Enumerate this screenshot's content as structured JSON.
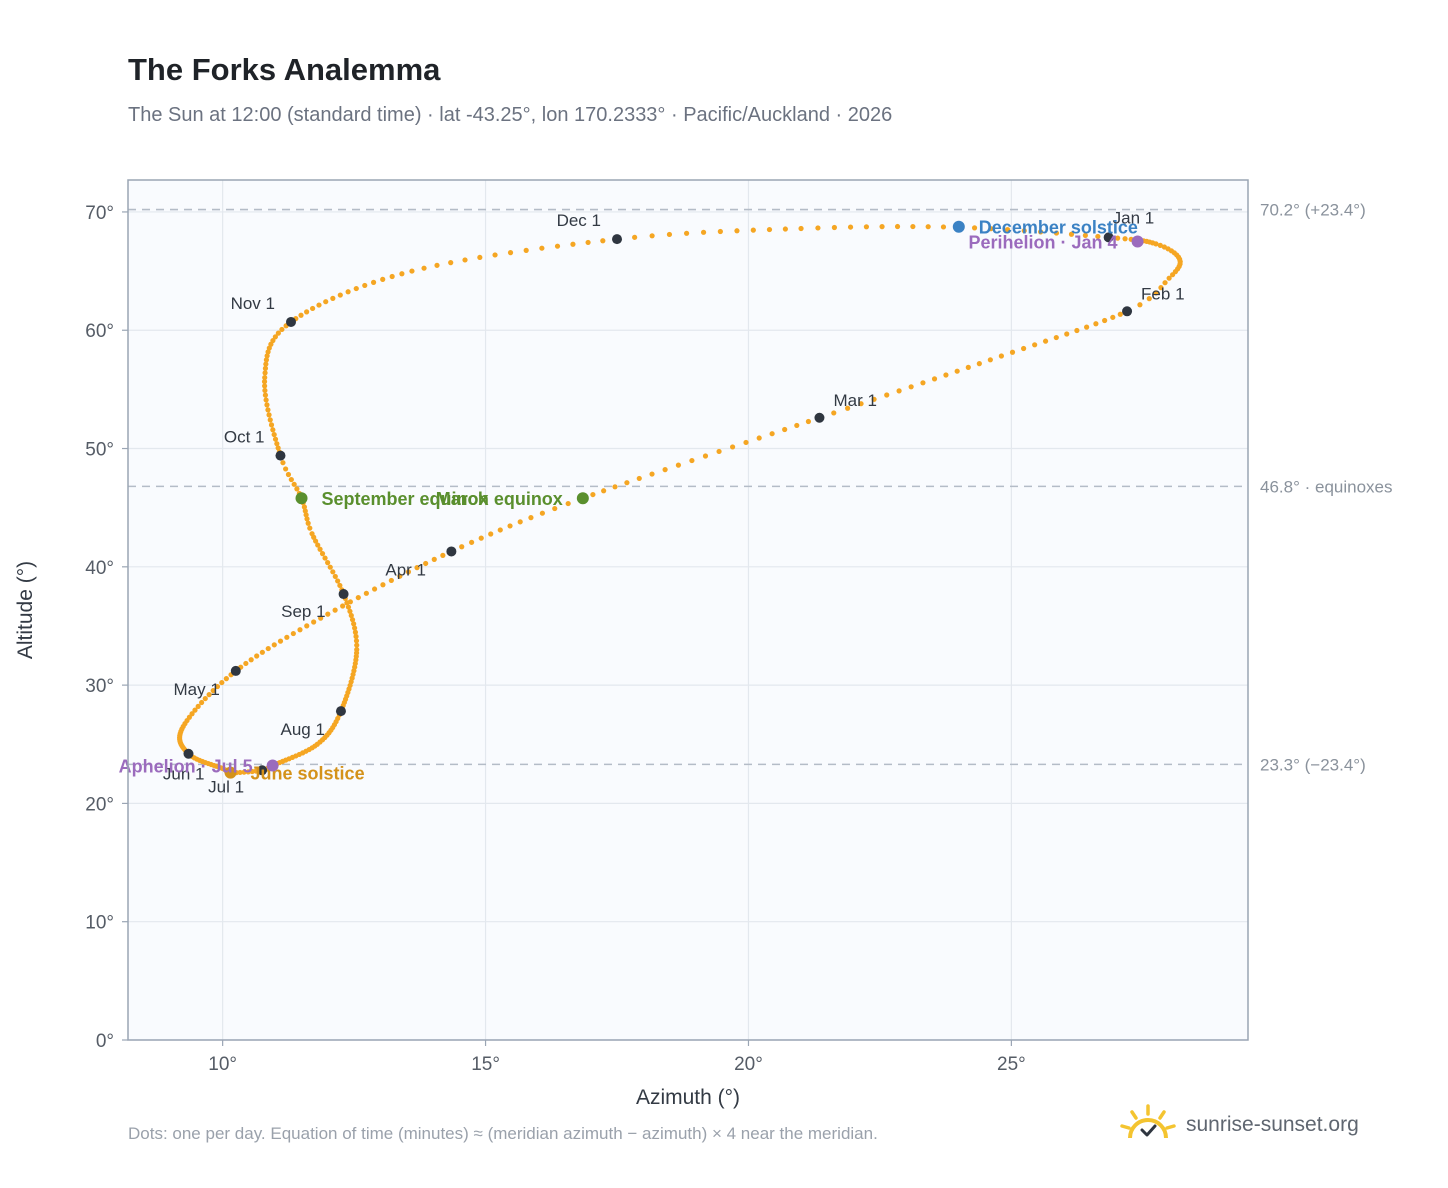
{
  "header": {
    "title": "The Forks Analemma",
    "subtitle": "The Sun at 12:00 (standard time) · lat -43.25°, lon 170.2333° · Pacific/Auckland · 2026"
  },
  "footer": {
    "note": "Dots: one per day. Equation of time (minutes) ≈ (meridian azimuth − azimuth) × 4 near the meridian.",
    "brand": "sunrise-sunset.org"
  },
  "colors": {
    "curve": "#f5a623",
    "month_marker": "#2f3640",
    "solstice_june": "#d4921a",
    "solstice_december": "#3b82c4",
    "equinox": "#5a8f2e",
    "apsis": "#9b6bbd",
    "plot_bg": "#f9fbfe",
    "grid": "#e3e8ee",
    "frame": "#9aa5b4",
    "reference_line": "#b4bcc7"
  },
  "chart_data": {
    "type": "scatter",
    "xlabel": "Azimuth (°)",
    "ylabel": "Altitude (°)",
    "xlim": [
      8.2,
      29.5
    ],
    "ylim": [
      0,
      72.7
    ],
    "xticks": [
      10,
      15,
      20,
      25
    ],
    "yticks": [
      0,
      10,
      20,
      30,
      40,
      50,
      60,
      70
    ],
    "x_tick_labels": [
      "10°",
      "15°",
      "20°",
      "25°"
    ],
    "y_tick_labels": [
      "0°",
      "10°",
      "20°",
      "30°",
      "40°",
      "50°",
      "60°",
      "70°"
    ],
    "grid": true,
    "reference_lines": [
      {
        "y": 70.2,
        "label": "70.2° (+23.4°)"
      },
      {
        "y": 46.8,
        "label": "46.8° · equinoxes"
      },
      {
        "y": 23.3,
        "label": "23.3° (−23.4°)"
      }
    ],
    "analemma_keypoints": [
      {
        "day": 0,
        "x": 26.85,
        "y": 67.85
      },
      {
        "day": 10,
        "x": 27.75,
        "y": 67.3
      },
      {
        "day": 18,
        "x": 28.2,
        "y": 66.0
      },
      {
        "day": 25,
        "x": 28.0,
        "y": 64.4
      },
      {
        "day": 31,
        "x": 27.2,
        "y": 61.6
      },
      {
        "day": 45,
        "x": 24.6,
        "y": 57.5
      },
      {
        "day": 59,
        "x": 21.35,
        "y": 52.6
      },
      {
        "day": 78,
        "x": 16.85,
        "y": 45.8
      },
      {
        "day": 90,
        "x": 14.35,
        "y": 41.3
      },
      {
        "day": 105,
        "x": 12.0,
        "y": 36.0
      },
      {
        "day": 120,
        "x": 10.25,
        "y": 31.2
      },
      {
        "day": 135,
        "x": 9.25,
        "y": 26.5
      },
      {
        "day": 151,
        "x": 9.35,
        "y": 24.2
      },
      {
        "day": 165,
        "x": 10.0,
        "y": 22.95
      },
      {
        "day": 172,
        "x": 10.15,
        "y": 22.6
      },
      {
        "day": 181,
        "x": 10.75,
        "y": 22.8
      },
      {
        "day": 185,
        "x": 10.95,
        "y": 23.2
      },
      {
        "day": 200,
        "x": 11.8,
        "y": 25.0
      },
      {
        "day": 212,
        "x": 12.25,
        "y": 27.8
      },
      {
        "day": 230,
        "x": 12.55,
        "y": 33.0
      },
      {
        "day": 243,
        "x": 12.3,
        "y": 37.7
      },
      {
        "day": 257,
        "x": 11.7,
        "y": 42.8
      },
      {
        "day": 265,
        "x": 11.5,
        "y": 45.8
      },
      {
        "day": 273,
        "x": 11.1,
        "y": 49.4
      },
      {
        "day": 290,
        "x": 10.8,
        "y": 56.0
      },
      {
        "day": 304,
        "x": 11.3,
        "y": 60.7
      },
      {
        "day": 320,
        "x": 13.6,
        "y": 65.0
      },
      {
        "day": 334,
        "x": 17.5,
        "y": 67.7
      },
      {
        "day": 345,
        "x": 21.0,
        "y": 68.6
      },
      {
        "day": 355,
        "x": 24.0,
        "y": 68.7
      },
      {
        "day": 365,
        "x": 26.85,
        "y": 67.85
      }
    ],
    "month_markers": [
      {
        "label": "Jan 1",
        "x": 26.85,
        "y": 67.85,
        "anchor": "start",
        "dx": 4,
        "dy": -14
      },
      {
        "label": "Feb 1",
        "x": 27.2,
        "y": 61.6,
        "anchor": "start",
        "dx": 14,
        "dy": -12
      },
      {
        "label": "Mar 1",
        "x": 21.35,
        "y": 52.6,
        "anchor": "start",
        "dx": 14,
        "dy": -12
      },
      {
        "label": "Apr 1",
        "x": 14.35,
        "y": 41.3,
        "anchor": "start",
        "dx": -66,
        "dy": 24
      },
      {
        "label": "May 1",
        "x": 10.25,
        "y": 31.2,
        "anchor": "end",
        "dx": -16,
        "dy": 24
      },
      {
        "label": "Jun 1",
        "x": 9.35,
        "y": 24.2,
        "anchor": "end",
        "dx": 16,
        "dy": 26
      },
      {
        "label": "Jul 1",
        "x": 10.75,
        "y": 22.8,
        "anchor": "end",
        "dx": -18,
        "dy": 22
      },
      {
        "label": "Aug 1",
        "x": 12.25,
        "y": 27.8,
        "anchor": "end",
        "dx": -16,
        "dy": 24
      },
      {
        "label": "Sep 1",
        "x": 12.3,
        "y": 37.7,
        "anchor": "end",
        "dx": -18,
        "dy": 23
      },
      {
        "label": "Oct 1",
        "x": 11.1,
        "y": 49.4,
        "anchor": "end",
        "dx": -16,
        "dy": -13
      },
      {
        "label": "Nov 1",
        "x": 11.3,
        "y": 60.7,
        "anchor": "end",
        "dx": -16,
        "dy": -13
      },
      {
        "label": "Dec 1",
        "x": 17.5,
        "y": 67.7,
        "anchor": "end",
        "dx": -16,
        "dy": -13
      }
    ],
    "events": [
      {
        "label": "December solstice",
        "x": 24.0,
        "y": 68.75,
        "type": "solstice_december",
        "anchor": "start",
        "dx": 20,
        "dy": 7
      },
      {
        "label": "Perihelion · Jan 4",
        "x": 27.4,
        "y": 67.5,
        "type": "apsis",
        "anchor": "end",
        "dx": -20,
        "dy": 7
      },
      {
        "label": "March equinox",
        "x": 16.85,
        "y": 45.8,
        "type": "equinox",
        "anchor": "end",
        "dx": -20,
        "dy": 7
      },
      {
        "label": "September equinox",
        "x": 11.5,
        "y": 45.8,
        "type": "equinox",
        "anchor": "start",
        "dx": 20,
        "dy": 7
      },
      {
        "label": "June solstice",
        "x": 10.15,
        "y": 22.6,
        "type": "solstice_june",
        "anchor": "start",
        "dx": 20,
        "dy": 7
      },
      {
        "label": "Aphelion · Jul 5",
        "x": 10.95,
        "y": 23.2,
        "type": "apsis",
        "anchor": "end",
        "dx": -20,
        "dy": 7
      }
    ]
  }
}
